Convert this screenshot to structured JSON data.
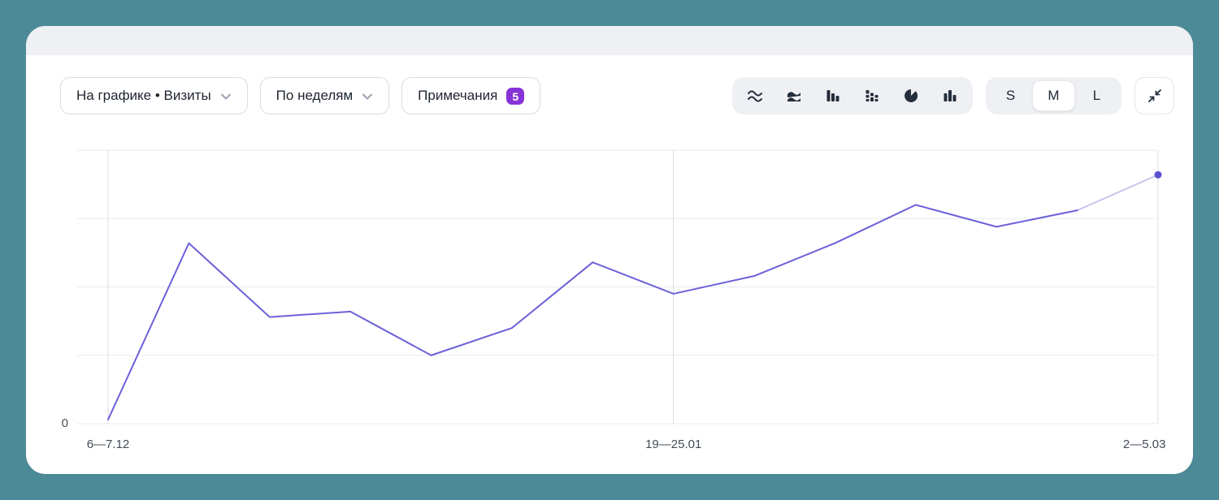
{
  "toolbar": {
    "metric_dropdown": {
      "label": "На графике • Визиты"
    },
    "period_dropdown": {
      "label": "По неделям"
    },
    "notes_button": {
      "label": "Примечания",
      "badge": "5"
    },
    "chart_types": [
      {
        "name": "line-chart",
        "selected": true
      },
      {
        "name": "area-chart",
        "selected": false
      },
      {
        "name": "bar-chart",
        "selected": false
      },
      {
        "name": "stacked-bar-chart",
        "selected": false
      },
      {
        "name": "pie-chart",
        "selected": false
      },
      {
        "name": "column-chart",
        "selected": false
      }
    ],
    "size_options": [
      {
        "label": "S",
        "selected": false
      },
      {
        "label": "M",
        "selected": true
      },
      {
        "label": "L",
        "selected": false
      }
    ]
  },
  "chart_data": {
    "type": "line",
    "series": [
      {
        "name": "Визиты",
        "values": [
          1.5,
          66,
          39,
          41,
          25,
          35,
          59,
          47.5,
          54,
          66,
          80,
          72,
          78,
          91
        ]
      }
    ],
    "x_tick_labels": [
      "6—7.12",
      "19—25.01",
      "2—5.03"
    ],
    "x_tick_indices": [
      0,
      7,
      13
    ],
    "y_tick_labels": [
      "0"
    ],
    "ylim": [
      0,
      100
    ],
    "solid_until_index": 12,
    "layout": {
      "x_inset_left": 38,
      "h_gridlines": 5,
      "grid": true,
      "legend": false
    },
    "colors": {
      "line": "#6c61d9",
      "line_light": "#c9c5ee",
      "dot": "#5a4fd2",
      "grid_h": "#e9ebef",
      "grid_v": "#d9dce3"
    }
  }
}
